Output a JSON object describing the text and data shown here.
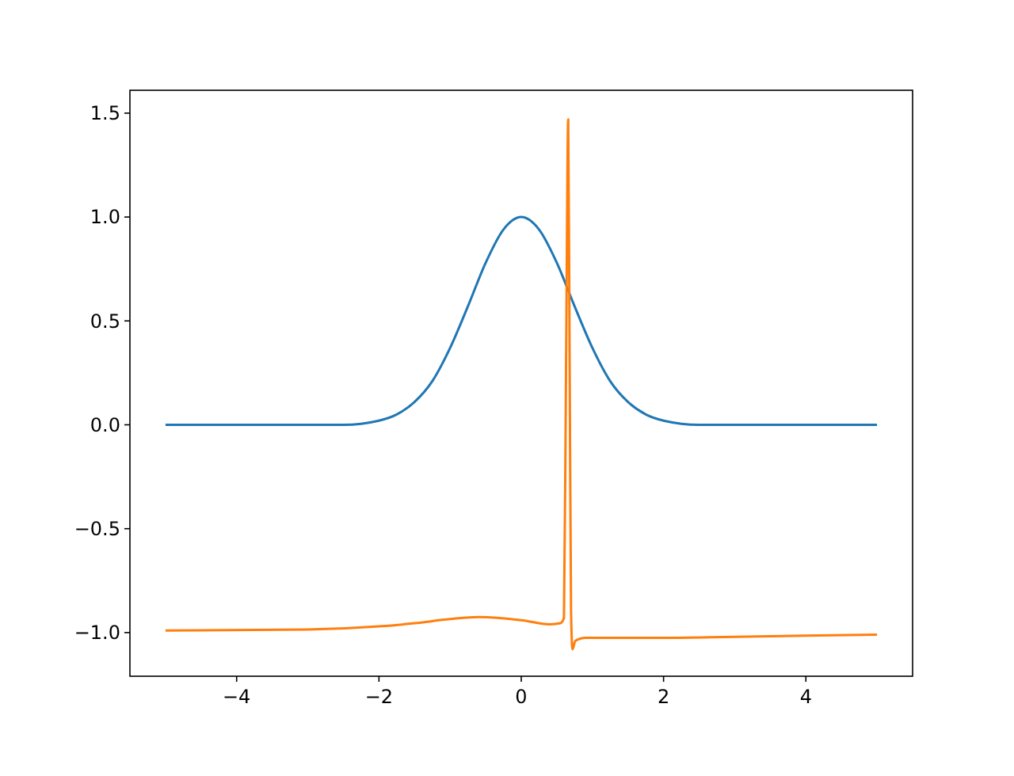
{
  "chart_data": {
    "type": "line",
    "xlim": [
      -5.5,
      5.5
    ],
    "ylim": [
      -1.21,
      1.61
    ],
    "xticks": [
      {
        "value": -4,
        "label": "−4"
      },
      {
        "value": -2,
        "label": "−2"
      },
      0,
      2,
      4
    ],
    "yticks": [
      {
        "value": -1,
        "label": "−1.0"
      },
      {
        "value": -0.5,
        "label": "−0.5"
      },
      {
        "value": 0,
        "label": "0.0"
      },
      {
        "value": 0.5,
        "label": "0.5"
      },
      {
        "value": 1,
        "label": "1.0"
      },
      {
        "value": 1.5,
        "label": "1.5"
      }
    ],
    "grid": false,
    "series": [
      {
        "color": "#1f77b4",
        "x": [
          -5,
          -3,
          -2.5,
          -2,
          -1.75,
          -1.5,
          -1.25,
          -1,
          -0.75,
          -0.5,
          -0.25,
          0,
          0.25,
          0.5,
          0.75,
          1,
          1.25,
          1.5,
          1.75,
          2,
          2.5,
          3,
          5
        ],
        "values": [
          0,
          0,
          0,
          0.02,
          0.05,
          0.11,
          0.21,
          0.37,
          0.57,
          0.78,
          0.94,
          1,
          0.94,
          0.78,
          0.57,
          0.37,
          0.21,
          0.11,
          0.05,
          0.02,
          0,
          0,
          0
        ]
      },
      {
        "color": "#ff7f0e",
        "x": [
          -5,
          -3,
          -2,
          -1.5,
          -1,
          -0.6,
          0,
          0.4,
          0.55,
          0.6,
          0.63,
          0.66,
          0.68,
          0.7,
          0.72,
          0.76,
          0.9,
          2,
          3,
          5
        ],
        "values": [
          -0.99,
          -0.985,
          -0.97,
          -0.955,
          -0.935,
          -0.925,
          -0.94,
          -0.96,
          -0.955,
          -0.93,
          0.3,
          1.47,
          0.3,
          -0.9,
          -1.08,
          -1.04,
          -1.025,
          -1.025,
          -1.02,
          -1.01
        ]
      }
    ]
  }
}
